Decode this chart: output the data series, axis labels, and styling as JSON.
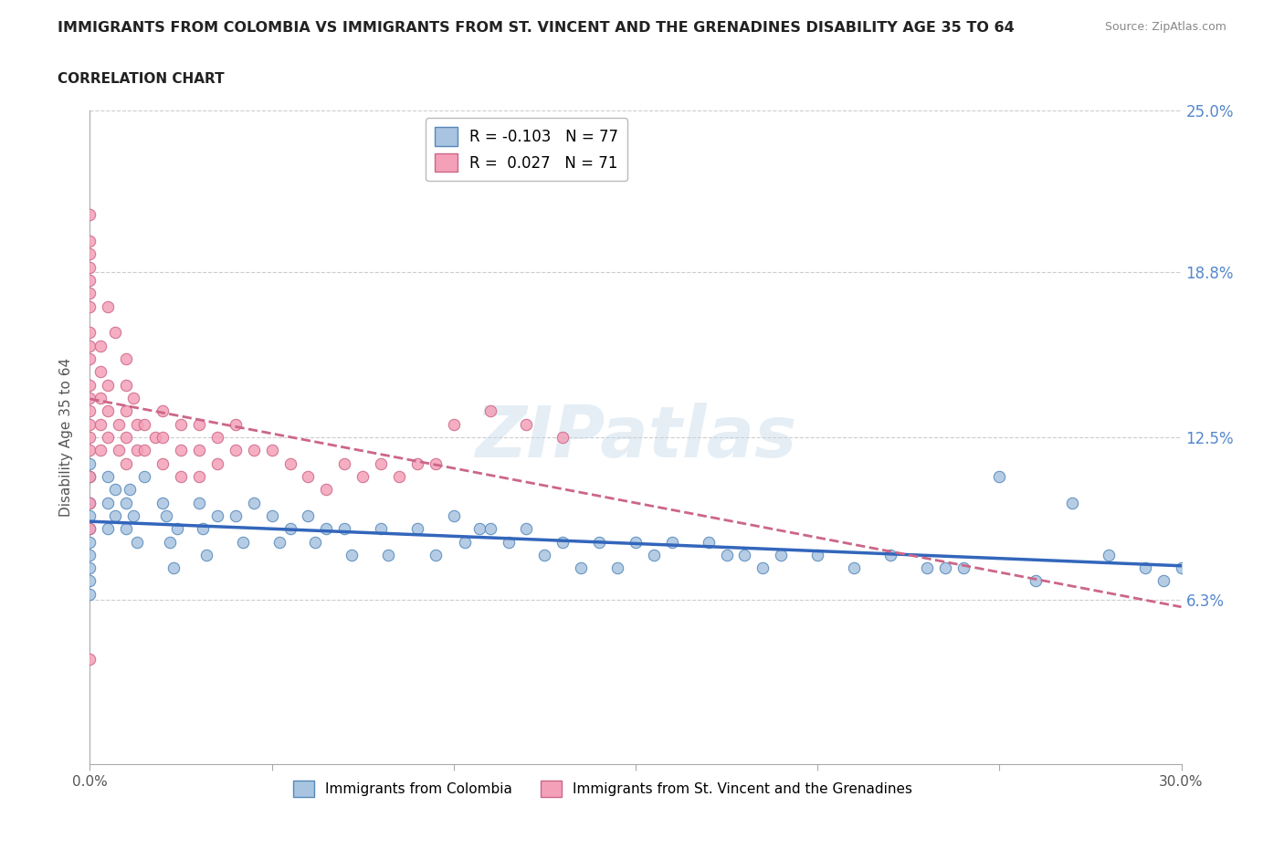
{
  "title": "IMMIGRANTS FROM COLOMBIA VS IMMIGRANTS FROM ST. VINCENT AND THE GRENADINES DISABILITY AGE 35 TO 64",
  "subtitle": "CORRELATION CHART",
  "source": "Source: ZipAtlas.com",
  "ylabel": "Disability Age 35 to 64",
  "xlim": [
    0.0,
    0.3
  ],
  "ylim": [
    0.0,
    0.25
  ],
  "ytick_vals": [
    0.063,
    0.125,
    0.188,
    0.25
  ],
  "ytick_labels": [
    "6.3%",
    "12.5%",
    "18.8%",
    "25.0%"
  ],
  "grid_color": "#cccccc",
  "colombia_color": "#a8c4e0",
  "colombia_edge": "#5588bb",
  "stvincent_color": "#f4a0b8",
  "stvincent_edge": "#cc6688",
  "colombia_R": -0.103,
  "colombia_N": 77,
  "stvincent_R": 0.027,
  "stvincent_N": 71,
  "colombia_line_color": "#3366bb",
  "stvincent_line_color": "#cc6688",
  "colombia_points_x": [
    0.0,
    0.0,
    0.0,
    0.0,
    0.0,
    0.0,
    0.0,
    0.0,
    0.0,
    0.0,
    0.005,
    0.005,
    0.005,
    0.007,
    0.007,
    0.01,
    0.01,
    0.011,
    0.012,
    0.013,
    0.015,
    0.02,
    0.021,
    0.022,
    0.023,
    0.024,
    0.03,
    0.031,
    0.032,
    0.035,
    0.04,
    0.042,
    0.045,
    0.05,
    0.052,
    0.055,
    0.06,
    0.062,
    0.065,
    0.07,
    0.072,
    0.08,
    0.082,
    0.09,
    0.095,
    0.1,
    0.103,
    0.107,
    0.11,
    0.115,
    0.12,
    0.125,
    0.13,
    0.135,
    0.14,
    0.145,
    0.15,
    0.155,
    0.16,
    0.17,
    0.175,
    0.18,
    0.185,
    0.19,
    0.2,
    0.21,
    0.22,
    0.23,
    0.235,
    0.24,
    0.25,
    0.26,
    0.27,
    0.28,
    0.29,
    0.295,
    0.3
  ],
  "colombia_points_y": [
    0.115,
    0.11,
    0.1,
    0.095,
    0.09,
    0.085,
    0.08,
    0.075,
    0.07,
    0.065,
    0.11,
    0.1,
    0.09,
    0.105,
    0.095,
    0.1,
    0.09,
    0.105,
    0.095,
    0.085,
    0.11,
    0.1,
    0.095,
    0.085,
    0.075,
    0.09,
    0.1,
    0.09,
    0.08,
    0.095,
    0.095,
    0.085,
    0.1,
    0.095,
    0.085,
    0.09,
    0.095,
    0.085,
    0.09,
    0.09,
    0.08,
    0.09,
    0.08,
    0.09,
    0.08,
    0.095,
    0.085,
    0.09,
    0.09,
    0.085,
    0.09,
    0.08,
    0.085,
    0.075,
    0.085,
    0.075,
    0.085,
    0.08,
    0.085,
    0.085,
    0.08,
    0.08,
    0.075,
    0.08,
    0.08,
    0.075,
    0.08,
    0.075,
    0.075,
    0.075,
    0.11,
    0.07,
    0.1,
    0.08,
    0.075,
    0.07,
    0.075
  ],
  "stvincent_points_x": [
    0.0,
    0.0,
    0.0,
    0.0,
    0.0,
    0.0,
    0.0,
    0.0,
    0.0,
    0.0,
    0.0,
    0.0,
    0.0,
    0.0,
    0.0,
    0.0,
    0.0,
    0.0,
    0.0,
    0.0,
    0.003,
    0.003,
    0.003,
    0.003,
    0.003,
    0.005,
    0.005,
    0.005,
    0.008,
    0.008,
    0.01,
    0.01,
    0.01,
    0.01,
    0.01,
    0.012,
    0.013,
    0.013,
    0.015,
    0.015,
    0.018,
    0.02,
    0.02,
    0.02,
    0.025,
    0.025,
    0.025,
    0.03,
    0.03,
    0.03,
    0.035,
    0.035,
    0.04,
    0.04,
    0.045,
    0.05,
    0.055,
    0.06,
    0.065,
    0.07,
    0.075,
    0.08,
    0.085,
    0.09,
    0.095,
    0.1,
    0.11,
    0.12,
    0.13,
    0.005,
    0.007
  ],
  "stvincent_points_y": [
    0.21,
    0.2,
    0.195,
    0.19,
    0.185,
    0.18,
    0.175,
    0.165,
    0.16,
    0.155,
    0.145,
    0.14,
    0.135,
    0.13,
    0.125,
    0.12,
    0.11,
    0.1,
    0.09,
    0.04,
    0.16,
    0.15,
    0.14,
    0.13,
    0.12,
    0.145,
    0.135,
    0.125,
    0.13,
    0.12,
    0.155,
    0.145,
    0.135,
    0.125,
    0.115,
    0.14,
    0.13,
    0.12,
    0.13,
    0.12,
    0.125,
    0.135,
    0.125,
    0.115,
    0.13,
    0.12,
    0.11,
    0.13,
    0.12,
    0.11,
    0.125,
    0.115,
    0.13,
    0.12,
    0.12,
    0.12,
    0.115,
    0.11,
    0.105,
    0.115,
    0.11,
    0.115,
    0.11,
    0.115,
    0.115,
    0.13,
    0.135,
    0.13,
    0.125,
    0.175,
    0.165
  ]
}
